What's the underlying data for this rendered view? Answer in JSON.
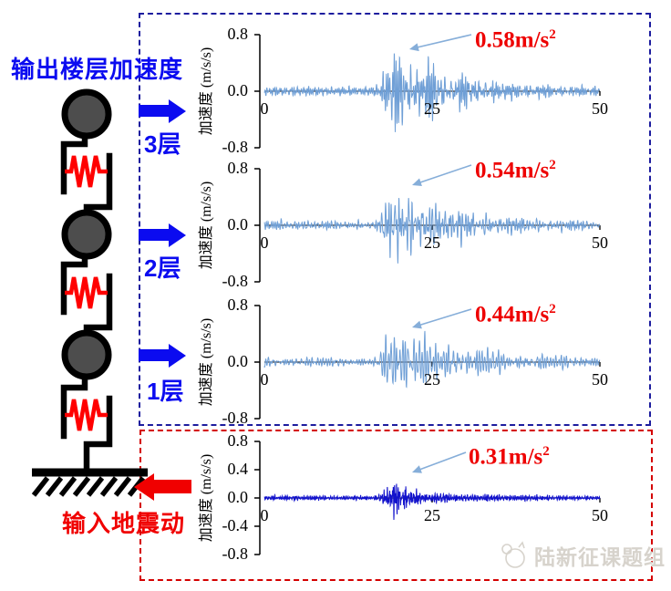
{
  "left_panel": {
    "title": "输出楼层加速度",
    "input_label": "输入地震动",
    "floors": [
      {
        "label": "3层"
      },
      {
        "label": "2层"
      },
      {
        "label": "1层"
      }
    ]
  },
  "watermark": {
    "text": "陆新征课题组"
  },
  "colors": {
    "blue_accent": "#0b0bf0",
    "red_accent": "#f00000",
    "box_blue": "#1c1c9e",
    "box_red": "#d40000",
    "floor_wave": "#6f9fd6",
    "ground_wave": "#1212cc",
    "pointer_arrow": "#86aed9",
    "annotation_red": "#ee0000"
  },
  "chart_data": {
    "type": "line",
    "ylabel": "加速度 (m/s/s)",
    "xlim": [
      0,
      50
    ],
    "ylim": [
      -0.8,
      0.8
    ],
    "xticks": [
      "0",
      "25",
      "50"
    ],
    "grid": false,
    "charts": [
      {
        "id": "floor-3",
        "annotation": {
          "text": "0.58m/s",
          "sup": "2"
        },
        "peak": 0.58,
        "peak_time": 19.5,
        "color": "#6f9fd6",
        "yticks": [
          "0.8",
          "0.0",
          "-0.8"
        ],
        "envelope": [
          [
            0,
            0.11
          ],
          [
            4,
            0.13
          ],
          [
            9,
            0.11
          ],
          [
            15,
            0.1
          ],
          [
            17,
            0.16
          ],
          [
            18,
            0.55
          ],
          [
            19,
            0.9
          ],
          [
            19.5,
            1.0
          ],
          [
            20.5,
            0.82
          ],
          [
            21.5,
            0.62
          ],
          [
            22.5,
            0.74
          ],
          [
            23.5,
            0.6
          ],
          [
            25,
            0.66
          ],
          [
            26.5,
            0.5
          ],
          [
            28,
            0.38
          ],
          [
            30,
            0.42
          ],
          [
            32,
            0.3
          ],
          [
            35,
            0.24
          ],
          [
            38,
            0.2
          ],
          [
            42,
            0.16
          ],
          [
            46,
            0.13
          ],
          [
            50,
            0.11
          ]
        ]
      },
      {
        "id": "floor-2",
        "annotation": {
          "text": "0.54m/s",
          "sup": "2"
        },
        "peak": 0.54,
        "peak_time": 19.5,
        "color": "#6f9fd6",
        "yticks": [
          "0.8",
          "0.0",
          "-0.8"
        ],
        "envelope": [
          [
            0,
            0.11
          ],
          [
            4,
            0.13
          ],
          [
            9,
            0.11
          ],
          [
            15,
            0.1
          ],
          [
            17,
            0.16
          ],
          [
            18,
            0.55
          ],
          [
            19,
            0.9
          ],
          [
            19.5,
            1.0
          ],
          [
            20.5,
            0.82
          ],
          [
            21.5,
            0.62
          ],
          [
            22.5,
            0.74
          ],
          [
            23.5,
            0.6
          ],
          [
            25,
            0.66
          ],
          [
            26.5,
            0.5
          ],
          [
            28,
            0.38
          ],
          [
            30,
            0.42
          ],
          [
            32,
            0.3
          ],
          [
            35,
            0.24
          ],
          [
            38,
            0.2
          ],
          [
            42,
            0.16
          ],
          [
            46,
            0.13
          ],
          [
            50,
            0.11
          ]
        ]
      },
      {
        "id": "floor-1",
        "annotation": {
          "text": "0.44m/s",
          "sup": "2"
        },
        "peak": 0.44,
        "peak_time": 19.5,
        "color": "#6f9fd6",
        "yticks": [
          "0.8",
          "0.0",
          "-0.8"
        ],
        "envelope": [
          [
            0,
            0.12
          ],
          [
            4,
            0.14
          ],
          [
            9,
            0.12
          ],
          [
            15,
            0.11
          ],
          [
            17,
            0.18
          ],
          [
            18,
            0.55
          ],
          [
            19,
            0.9
          ],
          [
            19.5,
            1.0
          ],
          [
            20.5,
            0.85
          ],
          [
            21.5,
            0.65
          ],
          [
            22.5,
            0.75
          ],
          [
            24,
            0.62
          ],
          [
            25.5,
            0.66
          ],
          [
            27,
            0.5
          ],
          [
            29,
            0.4
          ],
          [
            31,
            0.42
          ],
          [
            34,
            0.3
          ],
          [
            38,
            0.24
          ],
          [
            42,
            0.2
          ],
          [
            46,
            0.17
          ],
          [
            50,
            0.15
          ]
        ]
      },
      {
        "id": "ground",
        "annotation": {
          "text": "0.31m/s",
          "sup": "2"
        },
        "peak": 0.31,
        "peak_time": 19.5,
        "color": "#1212cc",
        "yticks": [
          "0.8",
          "0.4",
          "0.0",
          "-0.4",
          "-0.8"
        ],
        "envelope": [
          [
            0,
            0.1
          ],
          [
            3,
            0.14
          ],
          [
            7,
            0.12
          ],
          [
            12,
            0.1
          ],
          [
            16,
            0.1
          ],
          [
            17.5,
            0.25
          ],
          [
            18.5,
            0.7
          ],
          [
            19.5,
            1.0
          ],
          [
            20.5,
            0.75
          ],
          [
            21.5,
            0.5
          ],
          [
            23,
            0.4
          ],
          [
            25,
            0.32
          ],
          [
            27,
            0.26
          ],
          [
            30,
            0.2
          ],
          [
            34,
            0.17
          ],
          [
            39,
            0.14
          ],
          [
            44,
            0.12
          ],
          [
            50,
            0.1
          ]
        ]
      }
    ]
  }
}
